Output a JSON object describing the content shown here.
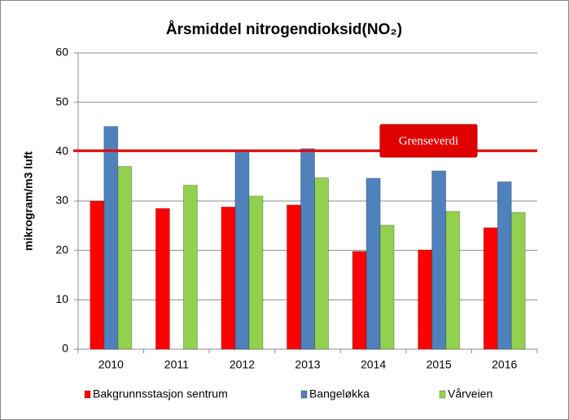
{
  "chart_data": {
    "type": "bar",
    "title": "Årsmiddel nitrogendioksid(NO₂)",
    "y_label": "mikrogram/m3 luft",
    "categories": [
      "2010",
      "2011",
      "2012",
      "2013",
      "2014",
      "2015",
      "2016"
    ],
    "series": [
      {
        "name": "Bakgrunnsstasjon sentrum",
        "color": "#ff0000",
        "values": [
          30,
          28.5,
          28.8,
          29.2,
          19.8,
          20.1,
          24.6
        ]
      },
      {
        "name": "Bangeløkka",
        "color": "#4f81bd",
        "values": [
          45.1,
          null,
          40.1,
          40.6,
          34.6,
          36.1,
          33.9
        ]
      },
      {
        "name": "Vårveien",
        "color": "#92d050",
        "values": [
          37,
          33.2,
          31,
          34.7,
          25.1,
          27.9,
          27.7
        ]
      }
    ],
    "ylim": [
      0,
      60
    ],
    "yticks": [
      0,
      10,
      20,
      30,
      40,
      50,
      60
    ],
    "grid": true,
    "reference_line": {
      "label": "Grenseverdi",
      "value": 40.2,
      "color": "#e00000"
    }
  }
}
